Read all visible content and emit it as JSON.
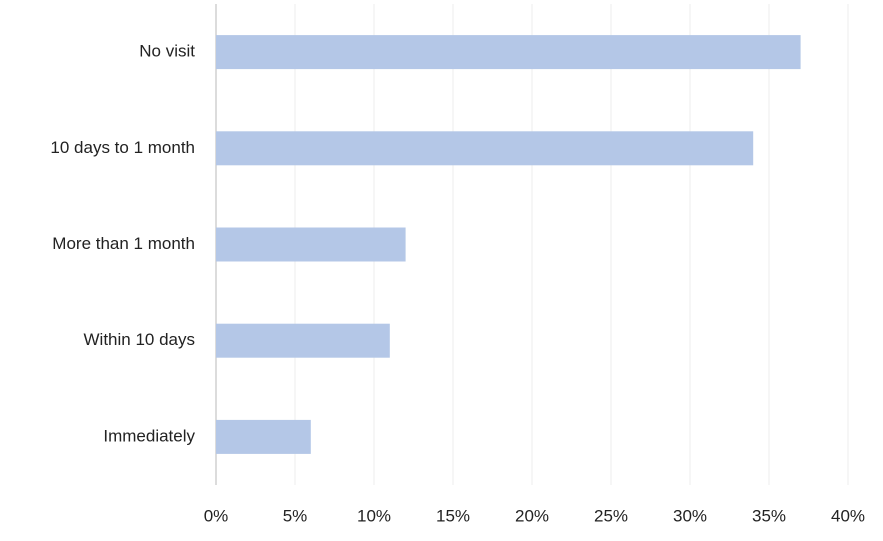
{
  "chart_data": {
    "type": "barh",
    "categories": [
      "No visit",
      "10 days to 1 month",
      "More than 1 month",
      "Within 10 days",
      "Immediately"
    ],
    "values": [
      37,
      34,
      12,
      11,
      6
    ],
    "color": "#b4c7e7",
    "xlim": [
      0,
      40
    ],
    "xticks": [
      {
        "value": 0,
        "label": "0%"
      },
      {
        "value": 5,
        "label": "5%"
      },
      {
        "value": 10,
        "label": "10%"
      },
      {
        "value": 15,
        "label": "15%"
      },
      {
        "value": 20,
        "label": "20%"
      },
      {
        "value": 25,
        "label": "25%"
      },
      {
        "value": 30,
        "label": "30%"
      },
      {
        "value": 35,
        "label": "35%"
      },
      {
        "value": 40,
        "label": "40%"
      }
    ],
    "grid": true
  }
}
